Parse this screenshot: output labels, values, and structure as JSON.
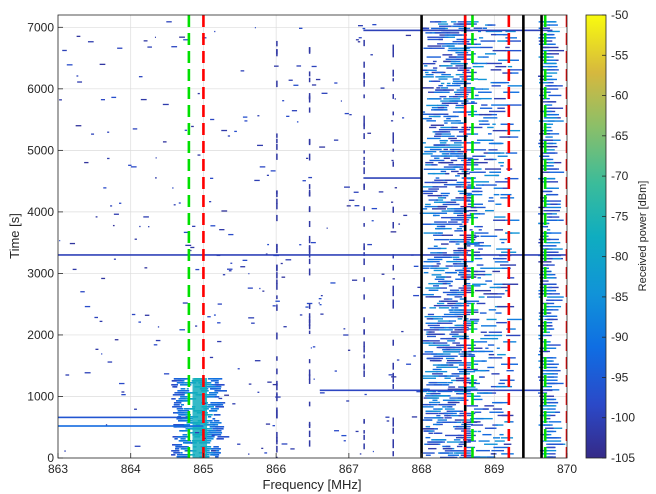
{
  "chart_data": {
    "type": "heatmap",
    "title": "",
    "xlabel": "Frequency [MHz]",
    "ylabel": "Time [s]",
    "xlim": [
      863,
      870
    ],
    "ylim": [
      0,
      7200
    ],
    "x_ticks": [
      863,
      864,
      865,
      866,
      867,
      868,
      869,
      870
    ],
    "x_tick_labels": [
      "863",
      "864",
      "865",
      "866",
      "867",
      "868",
      "869",
      "870"
    ],
    "y_ticks": [
      0,
      1000,
      2000,
      3000,
      4000,
      5000,
      6000,
      7000
    ],
    "y_tick_labels": [
      "0",
      "1000",
      "2000",
      "3000",
      "4000",
      "5000",
      "6000",
      "7000"
    ],
    "grid": true,
    "colorbar": {
      "label": "Received power [dBm]",
      "range": [
        -105,
        -50
      ],
      "ticks": [
        -50,
        -55,
        -60,
        -65,
        -70,
        -75,
        -80,
        -85,
        -90,
        -95,
        -100,
        -105
      ],
      "tick_labels": [
        "-50",
        "-55",
        "-60",
        "-65",
        "-70",
        "-75",
        "-80",
        "-85",
        "-90",
        "-95",
        "-100",
        "-105"
      ],
      "colormap": "parula"
    },
    "vertical_lines": {
      "black_solid": [
        868.0,
        868.6,
        869.4,
        869.65
      ],
      "green_dashed": [
        864.8,
        868.7,
        869.7
      ],
      "red_dashed": [
        865.0,
        868.6,
        869.2,
        870.0
      ]
    },
    "line_colors": {
      "black_solid": "#000000",
      "green_dashed": "#00e000",
      "red_dashed": "#ff0000"
    },
    "activity_regions": [
      {
        "x_range": [
          868.0,
          868.6
        ],
        "t_range": [
          0,
          7100
        ],
        "density": "very dense"
      },
      {
        "x_range": [
          868.6,
          869.2
        ],
        "t_range": [
          0,
          7100
        ],
        "density": "dense"
      },
      {
        "x_range": [
          869.6,
          869.75
        ],
        "t_range": [
          0,
          7100
        ],
        "density": "dense"
      },
      {
        "x_range": [
          864.55,
          865.2
        ],
        "t_range": [
          0,
          1300
        ],
        "density": "saturated burst"
      }
    ],
    "horizontal_traces": [
      {
        "x_range": [
          863.0,
          870.0
        ],
        "t": 3300,
        "power_dbm": -100
      },
      {
        "x_range": [
          863.0,
          864.8
        ],
        "t": 660,
        "power_dbm": -96
      },
      {
        "x_range": [
          863.0,
          865.0
        ],
        "t": 520,
        "power_dbm": -92
      },
      {
        "x_range": [
          866.6,
          869.8
        ],
        "t": 1100,
        "power_dbm": -99
      },
      {
        "x_range": [
          867.2,
          868.0
        ],
        "t": 4550,
        "power_dbm": -100
      },
      {
        "x_range": [
          867.2,
          869.8
        ],
        "t": 6950,
        "power_dbm": -100
      }
    ]
  }
}
